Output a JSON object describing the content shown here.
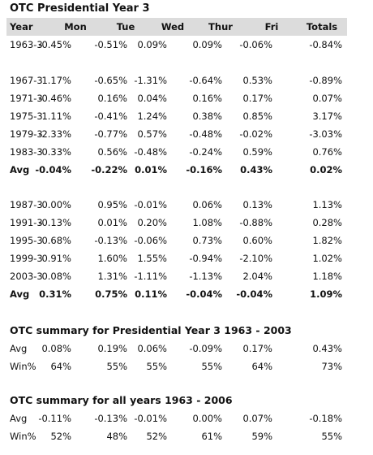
{
  "title": "OTC Presidential Year 3",
  "header": [
    "Year",
    "Mon",
    "Tue",
    "Wed",
    "Thur",
    "Fri",
    "Totals"
  ],
  "groups": [
    {
      "rows": [
        [
          "1963-3",
          "-0.45%",
          "-0.51%",
          "0.09%",
          "0.09%",
          "-0.06%",
          "-0.84%"
        ]
      ]
    },
    {
      "rows": [
        [
          "1967-3",
          "1.17%",
          "-0.65%",
          "-1.31%",
          "-0.64%",
          "0.53%",
          "-0.89%"
        ],
        [
          "1971-3",
          "-0.46%",
          "0.16%",
          "0.04%",
          "0.16%",
          "0.17%",
          "0.07%"
        ],
        [
          "1975-3",
          "1.11%",
          "-0.41%",
          "1.24%",
          "0.38%",
          "0.85%",
          "3.17%"
        ],
        [
          "1979-3",
          "-2.33%",
          "-0.77%",
          "0.57%",
          "-0.48%",
          "-0.02%",
          "-3.03%"
        ],
        [
          "1983-3",
          "0.33%",
          "0.56%",
          "-0.48%",
          "-0.24%",
          "0.59%",
          "0.76%"
        ]
      ],
      "avg": [
        "Avg",
        "-0.04%",
        "-0.22%",
        "0.01%",
        "-0.16%",
        "0.43%",
        "0.02%"
      ]
    },
    {
      "rows": [
        [
          "1987-3",
          "0.00%",
          "0.95%",
          "-0.01%",
          "0.06%",
          "0.13%",
          "1.13%"
        ],
        [
          "1991-3",
          "-0.13%",
          "0.01%",
          "0.20%",
          "1.08%",
          "-0.88%",
          "0.28%"
        ],
        [
          "1995-3",
          "0.68%",
          "-0.13%",
          "-0.06%",
          "0.73%",
          "0.60%",
          "1.82%"
        ],
        [
          "1999-3",
          "0.91%",
          "1.60%",
          "1.55%",
          "-0.94%",
          "-2.10%",
          "1.02%"
        ],
        [
          "2003-3",
          "0.08%",
          "1.31%",
          "-1.11%",
          "-1.13%",
          "2.04%",
          "1.18%"
        ]
      ],
      "avg": [
        "Avg",
        "0.31%",
        "0.75%",
        "0.11%",
        "-0.04%",
        "-0.04%",
        "1.09%"
      ]
    }
  ],
  "summaries": [
    {
      "title": "OTC summary for Presidential Year 3 1963 - 2003",
      "rows": [
        [
          "Avg",
          "0.08%",
          "0.19%",
          "0.06%",
          "-0.09%",
          "0.17%",
          "0.43%"
        ],
        [
          "Win%",
          "64%",
          "55%",
          "55%",
          "55%",
          "64%",
          "73%"
        ]
      ]
    },
    {
      "title": "OTC summary for all years 1963 - 2006",
      "rows": [
        [
          "Avg",
          "-0.11%",
          "-0.13%",
          "-0.01%",
          "0.00%",
          "0.07%",
          "-0.18%"
        ],
        [
          "Win%",
          "52%",
          "48%",
          "52%",
          "61%",
          "59%",
          "55%"
        ]
      ]
    }
  ]
}
